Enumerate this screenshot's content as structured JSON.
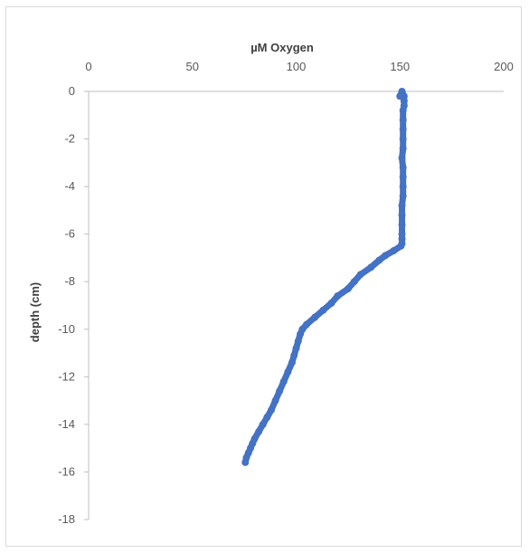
{
  "chart_data": {
    "type": "scatter",
    "title": "",
    "xlabel": "µM Oxygen",
    "ylabel": "depth (cm)",
    "x_axis_position": "top",
    "xlim": [
      0,
      200
    ],
    "ylim": [
      -18,
      0
    ],
    "x_ticks": [
      0,
      50,
      100,
      150,
      200
    ],
    "y_ticks": [
      0,
      -2,
      -4,
      -6,
      -8,
      -10,
      -12,
      -14,
      -16,
      -18
    ],
    "x_tick_labels": [
      "0",
      "50",
      "100",
      "150",
      "200"
    ],
    "y_tick_labels": [
      "0",
      "-2",
      "-4",
      "-6",
      "-8",
      "-10",
      "-12",
      "-14",
      "-16",
      "-18"
    ],
    "grid": false,
    "legend": "none",
    "series_color": "#4472c4",
    "x": [
      150,
      151,
      152,
      152,
      152,
      151.5,
      151.5,
      151.5,
      151.5,
      151.5,
      151,
      151.5,
      151.5,
      151.5,
      151.5,
      151,
      151,
      151,
      151,
      151,
      151,
      150.5,
      147,
      143,
      140,
      136,
      131,
      128,
      125,
      120,
      117,
      113,
      109,
      105,
      103,
      102,
      101,
      100,
      99,
      98,
      96,
      94,
      92,
      90,
      88,
      86,
      84,
      82,
      80,
      79,
      78,
      77,
      76,
      75.5
    ],
    "y": [
      -0.2,
      0,
      -0.2,
      -0.4,
      -0.6,
      -0.8,
      -1.2,
      -1.6,
      -2.0,
      -2.4,
      -2.8,
      -3.2,
      -3.6,
      -4.0,
      -4.4,
      -4.8,
      -5.2,
      -5.6,
      -6.0,
      -6.2,
      -6.4,
      -6.5,
      -6.7,
      -6.9,
      -7.1,
      -7.4,
      -7.7,
      -8.0,
      -8.3,
      -8.6,
      -8.9,
      -9.2,
      -9.5,
      -9.8,
      -10.0,
      -10.2,
      -10.5,
      -10.8,
      -11.1,
      -11.4,
      -11.8,
      -12.2,
      -12.6,
      -13.0,
      -13.4,
      -13.7,
      -14.0,
      -14.3,
      -14.6,
      -14.8,
      -15.0,
      -15.2,
      -15.4,
      -15.6
    ]
  }
}
